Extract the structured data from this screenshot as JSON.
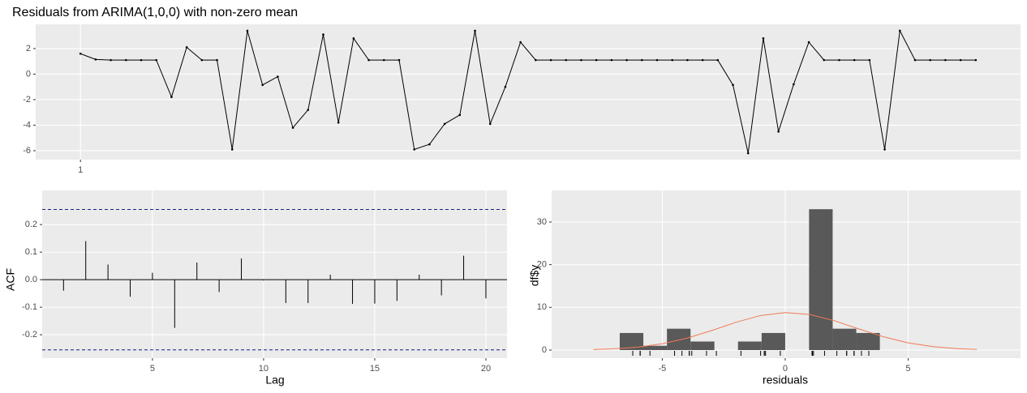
{
  "chart_data": [
    {
      "type": "line",
      "title": "Residuals from ARIMA(1,0,0) with non-zero mean",
      "color": "#000000",
      "x": [
        1,
        2,
        3,
        4,
        5,
        6,
        7,
        8,
        9,
        10,
        11,
        12,
        13,
        14,
        15,
        16,
        17,
        18,
        19,
        20,
        21,
        22,
        23,
        24,
        25,
        26,
        27,
        28,
        29,
        30,
        31,
        32,
        33,
        34,
        35,
        36,
        37,
        38,
        39,
        40,
        41,
        42,
        43,
        44,
        45,
        46,
        47,
        48,
        49,
        50,
        51,
        52,
        53,
        54,
        55,
        56,
        57,
        58,
        59,
        60
      ],
      "values": [
        1.6,
        1.15,
        1.1,
        1.1,
        1.1,
        1.1,
        -1.8,
        2.1,
        1.1,
        1.1,
        -5.9,
        3.4,
        -0.85,
        -0.2,
        -4.2,
        -2.8,
        3.1,
        -3.8,
        2.8,
        1.1,
        1.1,
        1.1,
        -5.9,
        -5.5,
        -3.9,
        -3.2,
        3.4,
        -3.9,
        -1.0,
        2.5,
        1.1,
        1.1,
        1.1,
        1.1,
        1.1,
        1.1,
        1.1,
        1.1,
        1.1,
        1.1,
        1.1,
        1.1,
        1.1,
        -0.85,
        -6.2,
        2.8,
        -4.5,
        -0.8,
        2.5,
        1.1,
        1.1,
        1.1,
        1.1,
        -5.9,
        3.4,
        1.1,
        1.1,
        1.1,
        1.1,
        1.1
      ],
      "xlim": [
        -1.95,
        62.95
      ],
      "ylim": [
        -6.7,
        3.9
      ],
      "xticks": [
        1
      ],
      "yticks": [
        -6,
        -4,
        -2,
        0,
        2
      ],
      "grid": true
    },
    {
      "type": "acf",
      "xlabel": "Lag",
      "ylabel": "ACF",
      "color": "#000000",
      "ci_color": "#1a1a8c",
      "x": [
        1,
        2,
        3,
        4,
        5,
        6,
        7,
        8,
        9,
        10,
        11,
        12,
        13,
        14,
        15,
        16,
        17,
        18,
        19,
        20
      ],
      "values": [
        -0.04,
        0.14,
        0.055,
        -0.062,
        0.025,
        -0.175,
        0.062,
        -0.045,
        0.077,
        -0.003,
        -0.085,
        -0.085,
        0.018,
        -0.088,
        -0.087,
        -0.077,
        0.018,
        -0.057,
        0.087,
        -0.068
      ],
      "ci": [
        -0.255,
        0.255
      ],
      "xlim": [
        0.04,
        20.95
      ],
      "ylim": [
        -0.285,
        0.324
      ],
      "xticks": [
        5,
        10,
        15,
        20
      ],
      "yticks": [
        -0.2,
        -0.1,
        {
          "value": 0,
          "label": "0.0"
        },
        0.1,
        0.2
      ],
      "grid": true
    },
    {
      "type": "histogram",
      "xlabel": "residuals",
      "ylabel": "df$y",
      "color": "#595959",
      "bins": [
        -6.73,
        -5.77,
        -4.81,
        -3.85,
        -2.88,
        -1.92,
        -0.96,
        0.0,
        0.97,
        1.93,
        2.89,
        3.85
      ],
      "values": [
        4,
        1,
        5,
        2,
        0,
        2,
        4,
        0,
        33,
        5,
        4
      ],
      "curve": {
        "color": "#f07a55",
        "x": [
          -7.8,
          -7,
          -6,
          -5,
          -4,
          -3,
          -2,
          -1,
          0,
          1,
          2,
          3,
          4,
          5,
          6,
          7,
          7.8
        ],
        "values": [
          0.12,
          0.28,
          0.69,
          1.48,
          2.78,
          4.55,
          6.51,
          8.1,
          8.79,
          8.32,
          6.87,
          4.94,
          3.1,
          1.69,
          0.81,
          0.34,
          0.15
        ]
      },
      "xlim": [
        -9.5,
        9.57
      ],
      "ylim": [
        -1.9,
        37.4
      ],
      "xticks": [
        -5,
        0,
        5
      ],
      "yticks": [
        0,
        10,
        20,
        30
      ],
      "grid": true
    }
  ]
}
